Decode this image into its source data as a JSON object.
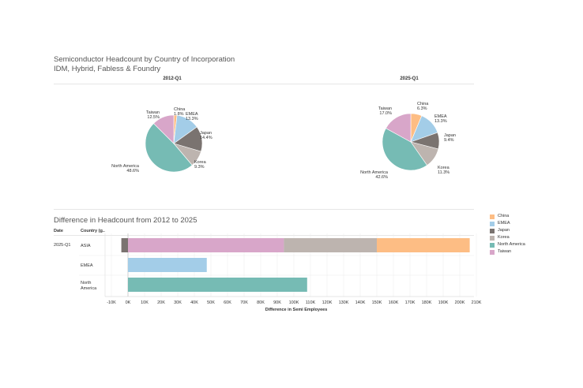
{
  "dashboard": {
    "title": "Semiconductor Headcount by Country of Incorporation",
    "subtitle": "IDM, Hybrid, Fabless & Foundry"
  },
  "colors": {
    "China": "#fdbd84",
    "EMEA": "#a3cde8",
    "Japan": "#7a7370",
    "Korea": "#bdb4af",
    "North America": "#76bbb4",
    "Taiwan": "#d8a6c9"
  },
  "legend": [
    "China",
    "EMEA",
    "Japan",
    "Korea",
    "North America",
    "Taiwan"
  ],
  "bar_section": {
    "title": "Difference in Headcount from 2012 to 2025",
    "col_date": "Date",
    "col_country": "Country (g..",
    "date_value": "2025-Q1"
  },
  "chart_data": [
    {
      "type": "pie",
      "title": "2012-Q1",
      "slices": [
        {
          "name": "China",
          "value": 1.8,
          "label": "1.8%"
        },
        {
          "name": "EMEA",
          "value": 13.3,
          "label": "13.3%"
        },
        {
          "name": "Japan",
          "value": 14.4,
          "label": "14.4%"
        },
        {
          "name": "Korea",
          "value": 9.3,
          "label": "9.3%"
        },
        {
          "name": "North America",
          "value": 48.6,
          "label": "48.6%"
        },
        {
          "name": "Taiwan",
          "value": 12.5,
          "label": "12.5%"
        }
      ]
    },
    {
      "type": "pie",
      "title": "2025-Q1",
      "slices": [
        {
          "name": "China",
          "value": 6.3,
          "label": "6.3%"
        },
        {
          "name": "EMEA",
          "value": 13.3,
          "label": "13.3%"
        },
        {
          "name": "Japan",
          "value": 9.4,
          "label": "9.4%"
        },
        {
          "name": "Korea",
          "value": 11.3,
          "label": "11.3%"
        },
        {
          "name": "North America",
          "value": 42.6,
          "label": "42.6%"
        },
        {
          "name": "Taiwan",
          "value": 17.0,
          "label": "17.0%"
        }
      ]
    },
    {
      "type": "bar",
      "orientation": "horizontal-stacked",
      "xlabel": "Difference in Semi Employees",
      "xlim": [
        -15000,
        215000
      ],
      "ticks": [
        -10000,
        0,
        10000,
        20000,
        30000,
        40000,
        50000,
        60000,
        70000,
        80000,
        90000,
        100000,
        110000,
        120000,
        130000,
        140000,
        150000,
        160000,
        170000,
        180000,
        190000,
        200000,
        210000
      ],
      "tick_labels": [
        "-10K",
        "0K",
        "10K",
        "20K",
        "30K",
        "40K",
        "50K",
        "60K",
        "70K",
        "80K",
        "90K",
        "100K",
        "110K",
        "120K",
        "130K",
        "140K",
        "150K",
        "160K",
        "170K",
        "180K",
        "190K",
        "200K",
        "210K"
      ],
      "rows": [
        {
          "label": "ASIA",
          "segments": [
            {
              "name": "Japan",
              "value": -4000
            },
            {
              "name": "Taiwan",
              "value": 94000
            },
            {
              "name": "Korea",
              "value": 56000
            },
            {
              "name": "China",
              "value": 56000
            }
          ]
        },
        {
          "label": "EMEA",
          "segments": [
            {
              "name": "EMEA",
              "value": 47500
            }
          ]
        },
        {
          "label": "North America",
          "segments": [
            {
              "name": "North America",
              "value": 108000
            }
          ]
        }
      ]
    }
  ]
}
